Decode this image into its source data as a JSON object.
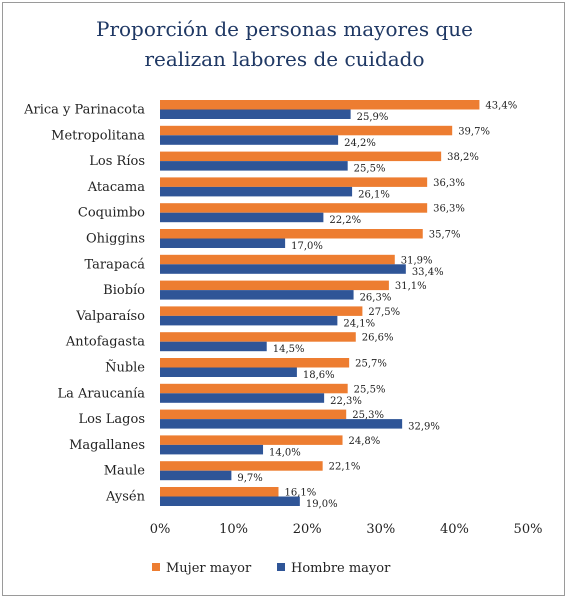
{
  "chart_data": {
    "type": "bar",
    "orientation": "horizontal",
    "title_lines": [
      "Proporción de personas mayores que",
      "realizan labores de cuidado"
    ],
    "categories": [
      "Arica y Parinacota",
      "Metropolitana",
      "Los Ríos",
      "Atacama",
      "Coquimbo",
      "Ohiggins",
      "Tarapacá",
      "Biobío",
      "Valparaíso",
      "Antofagasta",
      "Ñuble",
      "La Araucanía",
      "Los Lagos",
      "Magallanes",
      "Maule",
      "Aysén"
    ],
    "series": [
      {
        "name": "Mujer mayor",
        "color": "#ed7d31",
        "values": [
          43.4,
          39.7,
          38.2,
          36.3,
          36.3,
          35.7,
          31.9,
          31.1,
          27.5,
          26.6,
          25.7,
          25.5,
          25.3,
          24.8,
          22.1,
          16.1
        ],
        "labels": [
          "43,4%",
          "39,7%",
          "38,2%",
          "36,3%",
          "36,3%",
          "35,7%",
          "31,9%",
          "31,1%",
          "27,5%",
          "26,6%",
          "25,7%",
          "25,5%",
          "25,3%",
          "24,8%",
          "22,1%",
          "16,1%"
        ]
      },
      {
        "name": "Hombre mayor",
        "color": "#2f5597",
        "values": [
          25.9,
          24.2,
          25.5,
          26.1,
          22.2,
          17.0,
          33.4,
          26.3,
          24.1,
          14.5,
          18.6,
          22.3,
          32.9,
          14.0,
          9.7,
          19.0
        ],
        "labels": [
          "25,9%",
          "24,2%",
          "25,5%",
          "26,1%",
          "22,2%",
          "17,0%",
          "33,4%",
          "26,3%",
          "24,1%",
          "14,5%",
          "18,6%",
          "22,3%",
          "32,9%",
          "14,0%",
          "9,7%",
          "19,0%"
        ]
      }
    ],
    "xlim": [
      0,
      50
    ],
    "xticks": [
      0,
      10,
      20,
      30,
      40,
      50
    ],
    "xtick_labels": [
      "0%",
      "10%",
      "20%",
      "30%",
      "40%",
      "50%"
    ],
    "grid": false,
    "legend_position": "bottom"
  }
}
